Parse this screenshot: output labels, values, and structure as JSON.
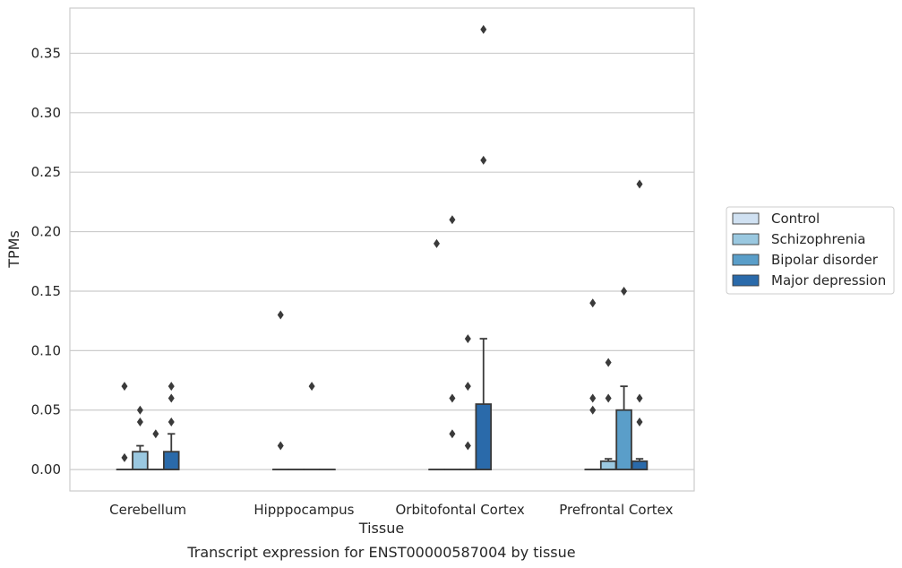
{
  "caption": "Transcript expression for ENST00000587004 by tissue",
  "chart_data": {
    "type": "box",
    "title": "",
    "xlabel": "Tissue",
    "ylabel": "TPMs",
    "ylim": [
      -0.018,
      0.388
    ],
    "yticks": [
      "0.00",
      "0.05",
      "0.10",
      "0.15",
      "0.20",
      "0.25",
      "0.30",
      "0.35"
    ],
    "grid": "horizontal",
    "legend_position": "right",
    "categories": [
      "Cerebellum",
      "Hipppocampus",
      "Orbitofontal Cortex",
      "Prefrontal Cortex"
    ],
    "series": [
      {
        "name": "Control",
        "color": "#d0e1f2",
        "boxes": [
          {
            "q1": 0.0,
            "median": 0.0,
            "q3": 0.0,
            "whisker_low": 0.0,
            "whisker_high": 0.0,
            "outliers": [
              0.01,
              0.07
            ]
          },
          {
            "q1": 0.0,
            "median": 0.0,
            "q3": 0.0,
            "whisker_low": 0.0,
            "whisker_high": 0.0,
            "outliers": [
              0.02,
              0.13
            ]
          },
          {
            "q1": 0.0,
            "median": 0.0,
            "q3": 0.0,
            "whisker_low": 0.0,
            "whisker_high": 0.0,
            "outliers": [
              0.19
            ]
          },
          {
            "q1": 0.0,
            "median": 0.0,
            "q3": 0.0,
            "whisker_low": 0.0,
            "whisker_high": 0.0,
            "outliers": [
              0.05,
              0.06,
              0.14
            ]
          }
        ]
      },
      {
        "name": "Schizophrenia",
        "color": "#9ac8e0",
        "boxes": [
          {
            "q1": 0.0,
            "median": 0.0,
            "q3": 0.015,
            "whisker_low": 0.0,
            "whisker_high": 0.02,
            "outliers": [
              0.04,
              0.05
            ]
          },
          {
            "q1": 0.0,
            "median": 0.0,
            "q3": 0.0,
            "whisker_low": 0.0,
            "whisker_high": 0.0,
            "outliers": []
          },
          {
            "q1": 0.0,
            "median": 0.0,
            "q3": 0.0,
            "whisker_low": 0.0,
            "whisker_high": 0.0,
            "outliers": [
              0.03,
              0.06,
              0.21
            ]
          },
          {
            "q1": 0.0,
            "median": 0.0,
            "q3": 0.007,
            "whisker_low": 0.0,
            "whisker_high": 0.009,
            "outliers": [
              0.06,
              0.09
            ]
          }
        ]
      },
      {
        "name": "Bipolar disorder",
        "color": "#5a9ec9",
        "boxes": [
          {
            "q1": 0.0,
            "median": 0.0,
            "q3": 0.0,
            "whisker_low": 0.0,
            "whisker_high": 0.0,
            "outliers": [
              0.03
            ]
          },
          {
            "q1": 0.0,
            "median": 0.0,
            "q3": 0.0,
            "whisker_low": 0.0,
            "whisker_high": 0.0,
            "outliers": [
              0.07
            ]
          },
          {
            "q1": 0.0,
            "median": 0.0,
            "q3": 0.0,
            "whisker_low": 0.0,
            "whisker_high": 0.0,
            "outliers": [
              0.02,
              0.07,
              0.11
            ]
          },
          {
            "q1": 0.0,
            "median": 0.0,
            "q3": 0.05,
            "whisker_low": 0.0,
            "whisker_high": 0.07,
            "outliers": [
              0.15
            ]
          }
        ]
      },
      {
        "name": "Major depression",
        "color": "#2a6aaa",
        "boxes": [
          {
            "q1": 0.0,
            "median": 0.0,
            "q3": 0.015,
            "whisker_low": 0.0,
            "whisker_high": 0.03,
            "outliers": [
              0.04,
              0.06,
              0.07
            ]
          },
          {
            "q1": 0.0,
            "median": 0.0,
            "q3": 0.0,
            "whisker_low": 0.0,
            "whisker_high": 0.0,
            "outliers": []
          },
          {
            "q1": 0.0,
            "median": 0.0,
            "q3": 0.055,
            "whisker_low": 0.0,
            "whisker_high": 0.11,
            "outliers": [
              0.26,
              0.37
            ]
          },
          {
            "q1": 0.0,
            "median": 0.0,
            "q3": 0.007,
            "whisker_low": 0.0,
            "whisker_high": 0.009,
            "outliers": [
              0.04,
              0.06,
              0.24
            ]
          }
        ]
      }
    ]
  }
}
